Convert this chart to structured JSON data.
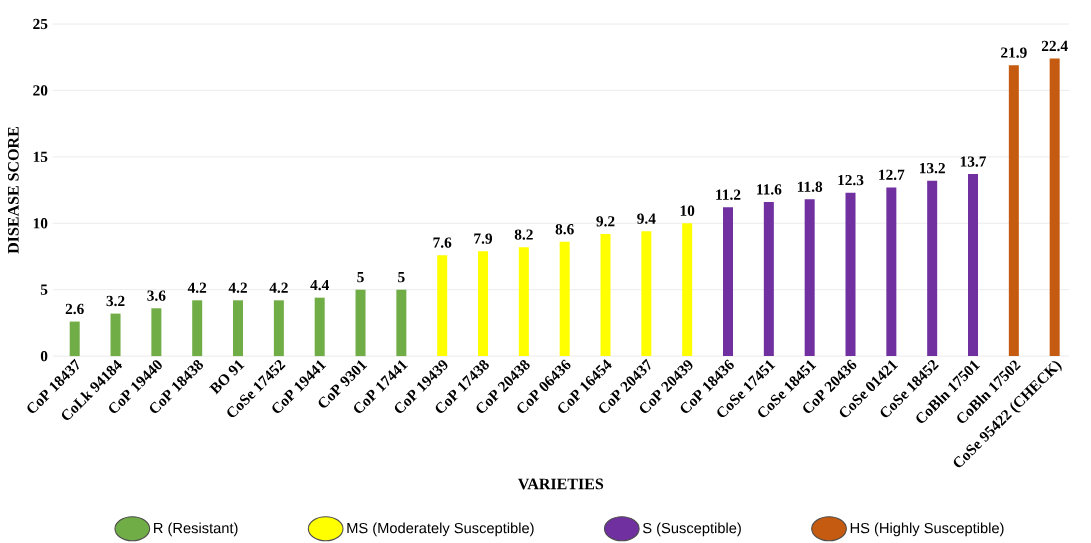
{
  "chart_data": {
    "type": "bar",
    "xlabel": "VARIETIES",
    "ylabel": "DISEASE  SCORE",
    "categories": [
      "CoP 18437",
      "CoLk 94184",
      "CoP 19440",
      "CoP 18438",
      "BO 91",
      "CoSe 17452",
      "CoP 19441",
      "CoP 9301",
      "CoP 17441",
      "CoP 19439",
      "CoP 17438",
      "CoP 20438",
      "CoP 06436",
      "CoP 16454",
      "CoP 20437",
      "CoP 20439",
      "CoP 18436",
      "CoSe 17451",
      "CoSe 18451",
      "CoP 20436",
      "CoSe 01421",
      "CoSe 18452",
      "CoBln 17501",
      "CoBln 17502",
      "CoSe 95422 (CHECK)"
    ],
    "series": [
      {
        "name": "R (Resistant)",
        "color": "#70ad47",
        "values": [
          2.6,
          3.2,
          3.6,
          4.2,
          4.2,
          4.2,
          4.4,
          5,
          5,
          null,
          null,
          null,
          null,
          null,
          null,
          null,
          null,
          null,
          null,
          null,
          null,
          null,
          null,
          null,
          null
        ]
      },
      {
        "name": "MS (Moderately  Susceptible)",
        "color": "#ffff00",
        "values": [
          null,
          null,
          null,
          null,
          null,
          null,
          null,
          null,
          null,
          7.6,
          7.9,
          8.2,
          8.6,
          9.2,
          9.4,
          10,
          null,
          null,
          null,
          null,
          null,
          null,
          null,
          null,
          null
        ]
      },
      {
        "name": "S (Susceptible)",
        "color": "#7030a0",
        "values": [
          null,
          null,
          null,
          null,
          null,
          null,
          null,
          null,
          null,
          null,
          null,
          null,
          null,
          null,
          null,
          null,
          11.2,
          11.6,
          11.8,
          12.3,
          12.7,
          13.2,
          13.7,
          null,
          null
        ]
      },
      {
        "name": "HS (Highly  Susceptible)",
        "color": "#c55a11",
        "values": [
          null,
          null,
          null,
          null,
          null,
          null,
          null,
          null,
          null,
          null,
          null,
          null,
          null,
          null,
          null,
          null,
          null,
          null,
          null,
          null,
          null,
          null,
          null,
          21.9,
          22.4
        ]
      }
    ],
    "ylim": [
      0,
      25
    ],
    "yticks": [
      0,
      5,
      10,
      15,
      20,
      25
    ],
    "grid": "y",
    "legend": "bottom",
    "data_labels": true
  }
}
